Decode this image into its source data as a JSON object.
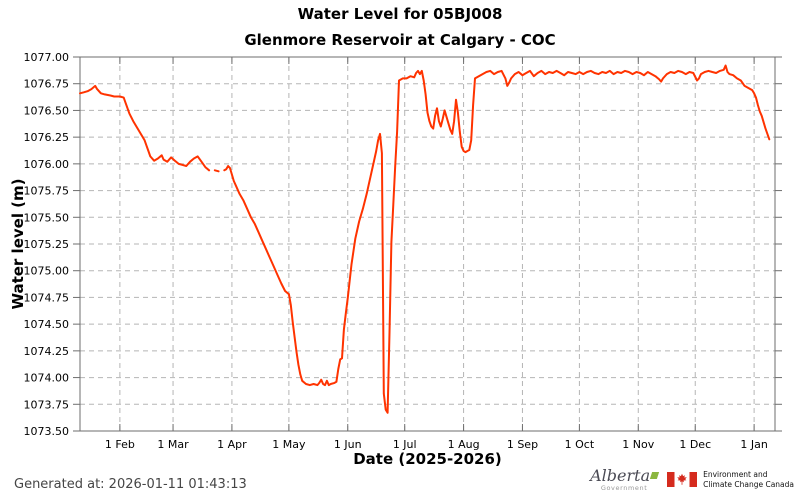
{
  "titles": {
    "title": "Water Level for 05BJ008",
    "subtitle": "Glenmore Reservoir at Calgary - COC"
  },
  "footer": {
    "generated_at": "Generated at: 2026-01-11 01:43:13"
  },
  "logos": {
    "alberta": {
      "name": "Alberta",
      "sub": "Government",
      "accent_color": "#8bb63f"
    },
    "eccc": {
      "line1": "Environment and",
      "line2": "Climate Change Canada",
      "flag_red": "#d52b1e"
    }
  },
  "chart_data": {
    "type": "line",
    "title": "Water Level for 05BJ008",
    "subtitle": "Glenmore Reservoir at Calgary - COC",
    "xlabel": "Date (2025-2026)",
    "ylabel": "Water level (m)",
    "ylim": [
      1073.5,
      1077.0
    ],
    "yticks": [
      "1077.00",
      "1076.75",
      "1076.50",
      "1076.25",
      "1076.00",
      "1075.75",
      "1075.50",
      "1075.25",
      "1075.00",
      "1074.75",
      "1074.50",
      "1074.25",
      "1074.00",
      "1073.75",
      "1073.50"
    ],
    "x_epoch": "2025-01-11",
    "x_domain_days": [
      0,
      366
    ],
    "xticks": [
      {
        "label": "1 Feb",
        "day": 21
      },
      {
        "label": "1 Mar",
        "day": 49
      },
      {
        "label": "1 Apr",
        "day": 80
      },
      {
        "label": "1 May",
        "day": 110
      },
      {
        "label": "1 Jun",
        "day": 141
      },
      {
        "label": "1 Jul",
        "day": 171
      },
      {
        "label": "1 Aug",
        "day": 202
      },
      {
        "label": "1 Sep",
        "day": 233
      },
      {
        "label": "1 Oct",
        "day": 263
      },
      {
        "label": "1 Nov",
        "day": 294
      },
      {
        "label": "1 Dec",
        "day": 324
      },
      {
        "label": "1 Jan",
        "day": 355
      }
    ],
    "grid": {
      "style": "dashed",
      "color": "#b5b5b5"
    },
    "axis_color": "#6e6e6e",
    "line": {
      "color": "#ff3300",
      "width": 2
    },
    "legend": "none",
    "series": [
      {
        "name": "Water level (m)",
        "segments": [
          [
            [
              0,
              1076.66
            ],
            [
              2,
              1076.67
            ],
            [
              4,
              1076.68
            ],
            [
              6,
              1076.7
            ],
            [
              8,
              1076.73
            ],
            [
              9,
              1076.7
            ],
            [
              11,
              1076.66
            ],
            [
              13,
              1076.65
            ],
            [
              16,
              1076.64
            ],
            [
              18,
              1076.63
            ],
            [
              21,
              1076.63
            ],
            [
              23,
              1076.62
            ],
            [
              24,
              1076.57
            ],
            [
              26,
              1076.47
            ],
            [
              28,
              1076.4
            ],
            [
              30,
              1076.34
            ],
            [
              32,
              1076.28
            ],
            [
              34,
              1076.22
            ],
            [
              35,
              1076.17
            ],
            [
              36,
              1076.12
            ],
            [
              37,
              1076.07
            ],
            [
              39,
              1076.03
            ],
            [
              41,
              1076.05
            ],
            [
              43,
              1076.08
            ],
            [
              44,
              1076.04
            ],
            [
              46,
              1076.02
            ],
            [
              48,
              1076.06
            ],
            [
              50,
              1076.03
            ],
            [
              52,
              1076.0
            ],
            [
              54,
              1075.99
            ],
            [
              56,
              1075.98
            ],
            [
              58,
              1076.02
            ],
            [
              60,
              1076.05
            ],
            [
              62,
              1076.07
            ],
            [
              64,
              1076.02
            ],
            [
              66,
              1075.97
            ],
            [
              68,
              1075.94
            ]
          ],
          [
            [
              71,
              1075.94
            ],
            [
              73,
              1075.93
            ]
          ],
          [
            [
              76,
              1075.94
            ],
            [
              77,
              1075.95
            ],
            [
              78,
              1075.98
            ],
            [
              79,
              1075.96
            ],
            [
              80,
              1075.9
            ],
            [
              81,
              1075.84
            ],
            [
              82,
              1075.8
            ],
            [
              84,
              1075.72
            ],
            [
              86,
              1075.66
            ],
            [
              88,
              1075.58
            ],
            [
              90,
              1075.5
            ],
            [
              92,
              1075.44
            ],
            [
              94,
              1075.36
            ],
            [
              96,
              1075.28
            ],
            [
              98,
              1075.2
            ],
            [
              100,
              1075.12
            ],
            [
              102,
              1075.04
            ],
            [
              104,
              1074.96
            ],
            [
              106,
              1074.88
            ],
            [
              108,
              1074.81
            ],
            [
              110,
              1074.78
            ],
            [
              111,
              1074.68
            ],
            [
              112,
              1074.52
            ],
            [
              113,
              1074.38
            ],
            [
              114,
              1074.24
            ],
            [
              115,
              1074.12
            ],
            [
              116,
              1074.03
            ],
            [
              117,
              1073.97
            ],
            [
              119,
              1073.94
            ],
            [
              121,
              1073.93
            ],
            [
              123,
              1073.94
            ],
            [
              125,
              1073.93
            ],
            [
              126,
              1073.95
            ],
            [
              127,
              1073.98
            ],
            [
              128,
              1073.94
            ],
            [
              129,
              1073.93
            ],
            [
              130,
              1073.97
            ],
            [
              131,
              1073.93
            ],
            [
              132,
              1073.94
            ],
            [
              134,
              1073.95
            ],
            [
              135,
              1073.96
            ],
            [
              136,
              1074.08
            ],
            [
              137,
              1074.17
            ],
            [
              138,
              1074.18
            ],
            [
              139,
              1074.45
            ],
            [
              140,
              1074.6
            ],
            [
              141,
              1074.74
            ],
            [
              142,
              1074.9
            ],
            [
              143,
              1075.06
            ],
            [
              144,
              1075.18
            ],
            [
              145,
              1075.3
            ],
            [
              146,
              1075.38
            ],
            [
              147,
              1075.46
            ],
            [
              148,
              1075.52
            ],
            [
              149,
              1075.58
            ],
            [
              150,
              1075.65
            ],
            [
              151,
              1075.72
            ],
            [
              152,
              1075.8
            ],
            [
              153,
              1075.88
            ],
            [
              154,
              1075.96
            ],
            [
              155,
              1076.04
            ],
            [
              156,
              1076.12
            ],
            [
              157,
              1076.22
            ],
            [
              158,
              1076.28
            ],
            [
              159,
              1076.1
            ],
            [
              160,
              1073.85
            ],
            [
              161,
              1073.7
            ],
            [
              162,
              1073.67
            ],
            [
              163,
              1074.42
            ],
            [
              164,
              1075.27
            ],
            [
              165,
              1075.62
            ],
            [
              166,
              1075.98
            ],
            [
              167,
              1076.3
            ],
            [
              168,
              1076.78
            ],
            [
              170,
              1076.8
            ],
            [
              172,
              1076.8
            ],
            [
              174,
              1076.82
            ],
            [
              176,
              1076.81
            ],
            [
              177,
              1076.85
            ],
            [
              178,
              1076.87
            ],
            [
              179,
              1076.84
            ],
            [
              180,
              1076.87
            ],
            [
              181,
              1076.78
            ],
            [
              182,
              1076.65
            ],
            [
              183,
              1076.48
            ],
            [
              184,
              1076.4
            ],
            [
              185,
              1076.35
            ],
            [
              186,
              1076.33
            ],
            [
              187,
              1076.45
            ],
            [
              188,
              1076.52
            ],
            [
              189,
              1076.4
            ],
            [
              190,
              1076.35
            ],
            [
              191,
              1076.42
            ],
            [
              192,
              1076.5
            ],
            [
              193,
              1076.44
            ],
            [
              194,
              1076.38
            ],
            [
              195,
              1076.32
            ],
            [
              196,
              1076.28
            ],
            [
              197,
              1076.4
            ],
            [
              198,
              1076.6
            ],
            [
              199,
              1076.48
            ],
            [
              200,
              1076.3
            ],
            [
              201,
              1076.16
            ],
            [
              202,
              1076.12
            ],
            [
              203,
              1076.11
            ],
            [
              204,
              1076.12
            ],
            [
              205,
              1076.13
            ],
            [
              206,
              1076.22
            ],
            [
              207,
              1076.55
            ],
            [
              208,
              1076.8
            ],
            [
              210,
              1076.82
            ],
            [
              212,
              1076.84
            ],
            [
              214,
              1076.86
            ],
            [
              216,
              1076.87
            ],
            [
              218,
              1076.84
            ],
            [
              220,
              1076.86
            ],
            [
              222,
              1076.87
            ],
            [
              224,
              1076.8
            ],
            [
              225,
              1076.73
            ],
            [
              226,
              1076.76
            ],
            [
              227,
              1076.8
            ],
            [
              229,
              1076.84
            ],
            [
              231,
              1076.86
            ],
            [
              233,
              1076.83
            ],
            [
              235,
              1076.85
            ],
            [
              237,
              1076.87
            ],
            [
              239,
              1076.82
            ],
            [
              241,
              1076.85
            ],
            [
              243,
              1076.87
            ],
            [
              245,
              1076.84
            ],
            [
              247,
              1076.86
            ],
            [
              249,
              1076.85
            ],
            [
              251,
              1076.87
            ],
            [
              253,
              1076.85
            ],
            [
              255,
              1076.83
            ],
            [
              257,
              1076.86
            ],
            [
              259,
              1076.85
            ],
            [
              261,
              1076.84
            ],
            [
              263,
              1076.86
            ],
            [
              265,
              1076.84
            ],
            [
              267,
              1076.86
            ],
            [
              269,
              1076.87
            ],
            [
              271,
              1076.85
            ],
            [
              273,
              1076.84
            ],
            [
              275,
              1076.86
            ],
            [
              277,
              1076.85
            ],
            [
              279,
              1076.87
            ],
            [
              281,
              1076.84
            ],
            [
              283,
              1076.86
            ],
            [
              285,
              1076.85
            ],
            [
              287,
              1076.87
            ],
            [
              289,
              1076.86
            ],
            [
              291,
              1076.84
            ],
            [
              293,
              1076.86
            ],
            [
              295,
              1076.85
            ],
            [
              297,
              1076.83
            ],
            [
              299,
              1076.86
            ],
            [
              301,
              1076.84
            ],
            [
              303,
              1076.82
            ],
            [
              305,
              1076.79
            ],
            [
              306,
              1076.77
            ],
            [
              307,
              1076.8
            ],
            [
              309,
              1076.84
            ],
            [
              311,
              1076.86
            ],
            [
              313,
              1076.85
            ],
            [
              315,
              1076.87
            ],
            [
              317,
              1076.86
            ],
            [
              319,
              1076.84
            ],
            [
              321,
              1076.86
            ],
            [
              323,
              1076.85
            ],
            [
              325,
              1076.78
            ],
            [
              326,
              1076.8
            ],
            [
              327,
              1076.84
            ],
            [
              329,
              1076.86
            ],
            [
              331,
              1076.87
            ],
            [
              333,
              1076.86
            ],
            [
              335,
              1076.85
            ],
            [
              337,
              1076.87
            ],
            [
              339,
              1076.88
            ],
            [
              340,
              1076.92
            ],
            [
              341,
              1076.86
            ],
            [
              342,
              1076.84
            ],
            [
              344,
              1076.83
            ],
            [
              346,
              1076.8
            ],
            [
              348,
              1076.78
            ],
            [
              350,
              1076.73
            ],
            [
              352,
              1076.71
            ],
            [
              354,
              1076.69
            ],
            [
              355,
              1076.66
            ],
            [
              356,
              1076.62
            ],
            [
              357,
              1076.55
            ],
            [
              358,
              1076.49
            ],
            [
              359,
              1076.45
            ],
            [
              360,
              1076.39
            ],
            [
              361,
              1076.33
            ],
            [
              362,
              1076.28
            ],
            [
              363,
              1076.23
            ]
          ]
        ]
      }
    ]
  }
}
